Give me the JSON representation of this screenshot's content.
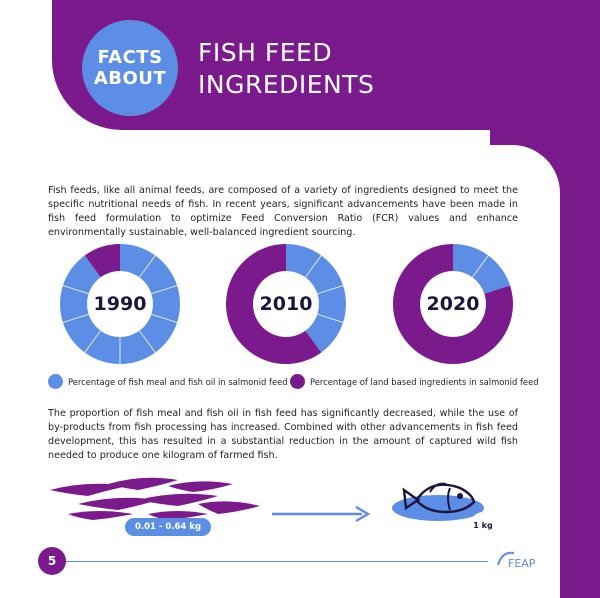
{
  "header": {
    "badge_line1": "FACTS",
    "badge_line2": "ABOUT",
    "title_line1": "FISH FEED",
    "title_line2": "INGREDIENTS"
  },
  "intro_text": "Fish feeds, like all animal feeds, are composed of a variety of ingredients designed to meet the specific nutritional needs of fish. In recent years, significant advancements have been made in fish feed formulation to optimize Feed Conversion Ratio (FCR) values and enhance environmentally sustainable, well-balanced ingredient sourcing.",
  "colors": {
    "purple": "#7b1a8c",
    "blue": "#5b8ee4",
    "dark_text": "#1e1440"
  },
  "chart_data": [
    {
      "type": "pie",
      "title": "1990",
      "categories": [
        "Percentage of fish meal and fish oil in salmonid feed",
        "Percentage of land based ingredients in salmonid feed"
      ],
      "values": [
        90,
        10
      ],
      "colors": [
        "#5b8ee4",
        "#7b1a8c"
      ]
    },
    {
      "type": "pie",
      "title": "2010",
      "categories": [
        "Percentage of fish meal and fish oil in salmonid feed",
        "Percentage of land based ingredients in salmonid feed"
      ],
      "values": [
        40,
        60
      ],
      "colors": [
        "#5b8ee4",
        "#7b1a8c"
      ]
    },
    {
      "type": "pie",
      "title": "2020",
      "categories": [
        "Percentage of fish meal and fish oil in salmonid feed",
        "Percentage of land based ingredients in salmonid feed"
      ],
      "values": [
        20,
        80
      ],
      "colors": [
        "#5b8ee4",
        "#7b1a8c"
      ]
    }
  ],
  "legend": [
    {
      "label": "Percentage of fish meal and fish oil in salmonid feed",
      "color": "#5b8ee4"
    },
    {
      "label": "Percentage of land based ingredients in salmonid feed",
      "color": "#7b1a8c"
    }
  ],
  "second_text": "The proportion of fish meal and fish oil in fish feed has significantly decreased, while the use of by-products from fish processing has increased. Combined with other advancements in fish feed development, this has resulted in a substantial reduction in the amount of captured wild fish needed to produce one kilogram of farmed fish.",
  "illustration": {
    "wild_fish_label": "0.01 - 0.64 kg",
    "farmed_fish_label": "1 kg",
    "school_icon": "fish-school-icon",
    "fish_icon": "fish-icon",
    "arrow_icon": "arrow-right-icon"
  },
  "footer": {
    "page_number": "5",
    "logo_text": "FEAP"
  }
}
